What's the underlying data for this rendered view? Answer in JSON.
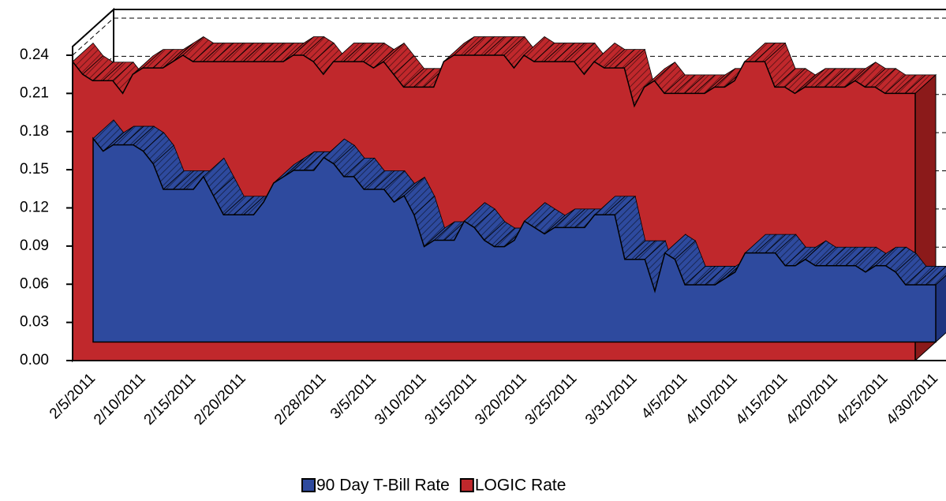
{
  "chart_data": {
    "type": "area3d",
    "categories": [
      "2/5/2011",
      null,
      null,
      null,
      null,
      "2/10/2011",
      null,
      null,
      null,
      null,
      "2/15/2011",
      null,
      null,
      null,
      null,
      "2/20/2011",
      null,
      null,
      null,
      null,
      null,
      null,
      null,
      "2/28/2011",
      null,
      null,
      null,
      null,
      "3/5/2011",
      null,
      null,
      null,
      null,
      "3/10/2011",
      null,
      null,
      null,
      null,
      "3/15/2011",
      null,
      null,
      null,
      null,
      "3/20/2011",
      null,
      null,
      null,
      null,
      "3/25/2011",
      null,
      null,
      null,
      null,
      null,
      "3/31/2011",
      null,
      null,
      null,
      null,
      "4/5/2011",
      null,
      null,
      null,
      null,
      "4/10/2011",
      null,
      null,
      null,
      null,
      "4/15/2011",
      null,
      null,
      null,
      null,
      "4/20/2011",
      null,
      null,
      null,
      null,
      "4/25/2011",
      null,
      null,
      null,
      null,
      "4/30/2011"
    ],
    "series": [
      {
        "name": "90 Day T-Bill Rate",
        "color": "#2e4a9e",
        "values": [
          0.16,
          0.15,
          0.155,
          0.155,
          0.155,
          0.15,
          0.14,
          0.12,
          0.12,
          0.12,
          0.12,
          0.13,
          0.115,
          0.1,
          0.1,
          0.1,
          0.1,
          0.11,
          0.125,
          0.13,
          0.135,
          0.135,
          0.135,
          0.145,
          0.14,
          0.13,
          0.13,
          0.12,
          0.12,
          0.12,
          0.11,
          0.115,
          0.1,
          0.075,
          0.08,
          0.08,
          0.08,
          0.095,
          0.09,
          0.08,
          0.075,
          0.075,
          0.08,
          0.095,
          0.09,
          0.085,
          0.09,
          0.09,
          0.09,
          0.09,
          0.1,
          0.1,
          0.1,
          0.065,
          0.065,
          0.065,
          0.04,
          0.07,
          0.065,
          0.045,
          0.045,
          0.045,
          0.045,
          0.05,
          0.055,
          0.07,
          0.07,
          0.07,
          0.07,
          0.06,
          0.06,
          0.065,
          0.06,
          0.06,
          0.06,
          0.06,
          0.06,
          0.055,
          0.06,
          0.06,
          0.055,
          0.045,
          0.045,
          0.045,
          0.045
        ]
      },
      {
        "name": "LOGIC Rate",
        "color": "#c0282c",
        "values": [
          0.235,
          0.225,
          0.22,
          0.22,
          0.22,
          0.21,
          0.225,
          0.23,
          0.23,
          0.23,
          0.235,
          0.24,
          0.235,
          0.235,
          0.235,
          0.235,
          0.235,
          0.235,
          0.235,
          0.235,
          0.235,
          0.235,
          0.24,
          0.24,
          0.235,
          0.225,
          0.235,
          0.235,
          0.235,
          0.235,
          0.23,
          0.235,
          0.225,
          0.215,
          0.215,
          0.215,
          0.215,
          0.235,
          0.24,
          0.24,
          0.24,
          0.24,
          0.24,
          0.24,
          0.23,
          0.24,
          0.235,
          0.235,
          0.235,
          0.235,
          0.235,
          0.225,
          0.235,
          0.23,
          0.23,
          0.23,
          0.2,
          0.215,
          0.22,
          0.21,
          0.21,
          0.21,
          0.21,
          0.21,
          0.215,
          0.215,
          0.22,
          0.235,
          0.235,
          0.235,
          0.215,
          0.215,
          0.21,
          0.215,
          0.215,
          0.215,
          0.215,
          0.215,
          0.22,
          0.215,
          0.215,
          0.21,
          0.21,
          0.21,
          0.21
        ]
      }
    ],
    "ylim": [
      0,
      0.24
    ],
    "yticks": [
      {
        "value": 0,
        "label": "0.00"
      },
      {
        "value": 0.03,
        "label": "0.03"
      },
      {
        "value": 0.06,
        "label": "0.06"
      },
      {
        "value": 0.09,
        "label": "0.09"
      },
      {
        "value": 0.12,
        "label": "0.12"
      },
      {
        "value": 0.15,
        "label": "0.15"
      },
      {
        "value": 0.18,
        "label": "0.18"
      },
      {
        "value": 0.21,
        "label": "0.21"
      },
      {
        "value": 0.24,
        "label": "0.24"
      }
    ],
    "grid": true,
    "legend": "bottom"
  }
}
